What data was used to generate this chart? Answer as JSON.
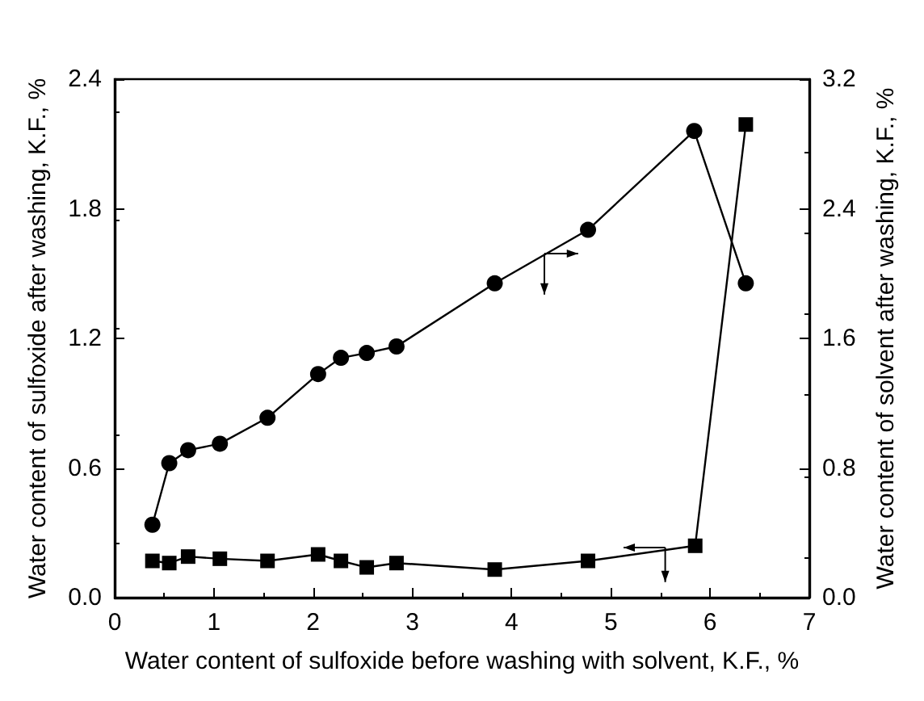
{
  "chart_data": {
    "type": "line",
    "xlabel": "Water content of sulfoxide before washing with solvent, K.F., %",
    "ylabel": "Water content of sulfoxide after washing, K.F., %",
    "y2label": "Water content of solvent after washing, K.F., %",
    "xlim": [
      0,
      7
    ],
    "xticks": [
      0,
      1,
      2,
      3,
      4,
      5,
      6,
      7
    ],
    "ylim": [
      0,
      2.4
    ],
    "yticks": [
      {
        "value": 0,
        "label": "0.0"
      },
      0.6,
      1.2,
      1.8,
      2.4
    ],
    "y2lim": [
      0,
      3.2
    ],
    "y2ticks": [
      {
        "value": 0,
        "label": "0.0"
      },
      0.8,
      1.6,
      2.4,
      3.2
    ],
    "grid": false,
    "series": [
      {
        "color": "#000000",
        "marker": "square",
        "x": [
          0.38,
          0.55,
          0.74,
          1.06,
          1.54,
          2.05,
          2.28,
          2.54,
          2.84,
          3.83,
          4.77,
          5.85,
          6.36
        ],
        "values": [
          0.17,
          0.16,
          0.19,
          0.18,
          0.17,
          0.2,
          0.17,
          0.14,
          0.16,
          0.13,
          0.17,
          0.24,
          2.19
        ]
      },
      {
        "color": "#000000",
        "marker": "circle",
        "axis": "y2",
        "x": [
          0.38,
          0.55,
          0.74,
          1.06,
          1.54,
          2.05,
          2.28,
          2.54,
          2.84,
          3.83,
          4.77,
          5.84,
          6.36
        ],
        "values": [
          0.45,
          0.83,
          0.91,
          0.95,
          1.11,
          1.38,
          1.48,
          1.51,
          1.55,
          1.94,
          2.27,
          2.88,
          1.94
        ]
      }
    ]
  }
}
